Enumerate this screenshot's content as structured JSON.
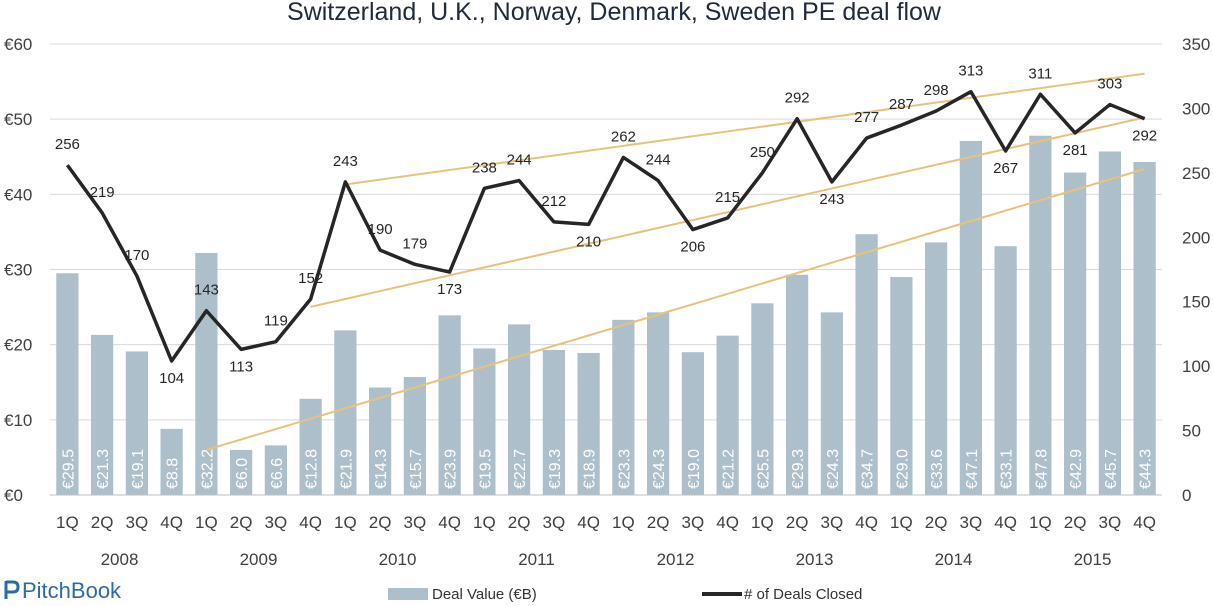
{
  "brand": {
    "name": "PitchBook",
    "icon": "pitchbook-logo-icon",
    "color": "#2f6aa6"
  },
  "colors": {
    "bars": "#adbfca",
    "line": "#262626",
    "trend": "#e8c27a",
    "grid": "#d9d9d9"
  },
  "chart_data": {
    "type": "bar",
    "title": "Switzerland, U.K., Norway, Denmark, Sweden PE deal flow",
    "quarters": [
      "1Q",
      "2Q",
      "3Q",
      "4Q",
      "1Q",
      "2Q",
      "3Q",
      "4Q",
      "1Q",
      "2Q",
      "3Q",
      "4Q",
      "1Q",
      "2Q",
      "3Q",
      "4Q",
      "1Q",
      "2Q",
      "3Q",
      "4Q",
      "1Q",
      "2Q",
      "3Q",
      "4Q",
      "1Q",
      "2Q",
      "3Q",
      "4Q",
      "1Q",
      "2Q",
      "3Q",
      "4Q"
    ],
    "years": [
      "2008",
      "2009",
      "2010",
      "2011",
      "2012",
      "2013",
      "2014",
      "2015"
    ],
    "y_left": {
      "ticks": [
        "€0",
        "€10",
        "€20",
        "€30",
        "€40",
        "€50",
        "€60"
      ],
      "range": [
        0,
        60
      ]
    },
    "y_right": {
      "ticks": [
        "0",
        "50",
        "100",
        "150",
        "200",
        "250",
        "300",
        "350"
      ],
      "range": [
        0,
        350
      ]
    },
    "series": [
      {
        "name": "Deal Value (€B)",
        "type": "bar",
        "axis": "left",
        "values": [
          29.5,
          21.3,
          19.1,
          8.8,
          32.2,
          6.0,
          6.6,
          12.8,
          21.9,
          14.3,
          15.7,
          23.9,
          19.5,
          22.7,
          19.3,
          18.9,
          23.3,
          24.3,
          19.0,
          21.2,
          25.5,
          29.3,
          24.3,
          34.7,
          29.0,
          33.6,
          47.1,
          33.1,
          47.8,
          42.9,
          45.7,
          44.3
        ],
        "labels": [
          "€29.5",
          "€21.3",
          "€19.1",
          "€8.8",
          "€32.2",
          "€6.0",
          "€6.6",
          "€12.8",
          "€21.9",
          "€14.3",
          "€15.7",
          "€23.9",
          "€19.5",
          "€22.7",
          "€19.3",
          "€18.9",
          "€23.3",
          "€24.3",
          "€19.0",
          "€21.2",
          "€25.5",
          "€29.3",
          "€24.3",
          "€34.7",
          "€29.0",
          "€33.6",
          "€47.1",
          "€33.1",
          "€47.8",
          "€42.9",
          "€45.7",
          "€44.3"
        ]
      },
      {
        "name": "# of Deals Closed",
        "type": "line",
        "axis": "right",
        "values": [
          256,
          219,
          170,
          104,
          143,
          113,
          119,
          152,
          243,
          190,
          179,
          173,
          238,
          244,
          212,
          210,
          262,
          244,
          206,
          215,
          250,
          292,
          243,
          277,
          287,
          298,
          313,
          267,
          311,
          281,
          303,
          292
        ]
      }
    ],
    "trendlines": [
      {
        "axis": "right",
        "from": [
          8,
          241
        ],
        "to": [
          31,
          327
        ]
      },
      {
        "axis": "right",
        "from": [
          7,
          146
        ],
        "to": [
          31,
          293
        ]
      },
      {
        "axis": "right",
        "from": [
          4,
          35
        ],
        "to": [
          31,
          253
        ]
      }
    ],
    "legend": {
      "position": "bottom",
      "entries": [
        "Deal Value (€B)",
        "# of Deals Closed"
      ]
    },
    "grid": true
  }
}
